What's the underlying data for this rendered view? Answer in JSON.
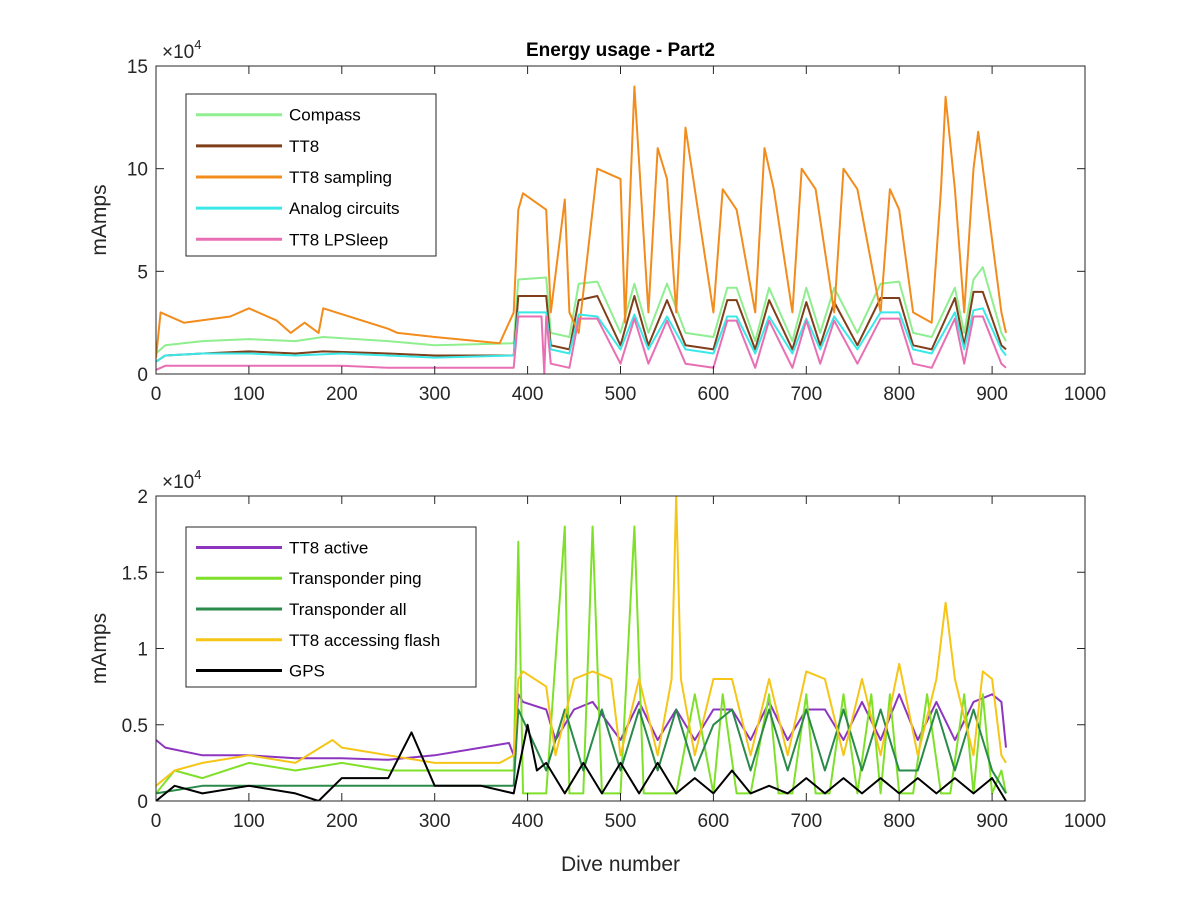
{
  "chart_data": [
    {
      "type": "line",
      "title": "Energy usage - Part2",
      "xlabel": "",
      "ylabel": "mAmps",
      "xlim": [
        0,
        1000
      ],
      "ylim": [
        0,
        150000
      ],
      "y_multiplier": "×10",
      "y_exponent": "4",
      "xticks": [
        0,
        100,
        200,
        300,
        400,
        500,
        600,
        700,
        800,
        900,
        1000
      ],
      "xtick_labels": [
        "0",
        "100",
        "200",
        "300",
        "400",
        "500",
        "600",
        "700",
        "800",
        "900",
        "1000"
      ],
      "yticks": [
        0,
        50000,
        100000,
        150000
      ],
      "ytick_labels": [
        "0",
        "5",
        "10",
        "15"
      ],
      "grid": false,
      "legend_position": "top-left",
      "series": [
        {
          "name": "Compass",
          "color": "#8fee8f",
          "x": [
            0,
            10,
            50,
            100,
            150,
            180,
            250,
            300,
            385,
            390,
            420,
            425,
            445,
            455,
            475,
            500,
            515,
            530,
            550,
            570,
            600,
            615,
            625,
            645,
            660,
            685,
            700,
            715,
            730,
            755,
            780,
            800,
            815,
            835,
            860,
            870,
            880,
            890,
            910,
            915
          ],
          "y": [
            10000,
            14000,
            16000,
            17000,
            16000,
            18000,
            16000,
            14000,
            15000,
            46000,
            47000,
            20000,
            18000,
            44000,
            45000,
            20000,
            44000,
            20000,
            44000,
            20000,
            18000,
            42000,
            42000,
            16000,
            42000,
            16000,
            42000,
            20000,
            42000,
            20000,
            44000,
            45000,
            20000,
            18000,
            42000,
            20000,
            46000,
            52000,
            20000,
            16000
          ]
        },
        {
          "name": "TT8",
          "color": "#7f3f1a",
          "x": [
            0,
            10,
            50,
            100,
            150,
            180,
            250,
            300,
            385,
            390,
            420,
            425,
            445,
            455,
            475,
            500,
            515,
            530,
            550,
            570,
            600,
            615,
            625,
            645,
            660,
            685,
            700,
            715,
            730,
            755,
            780,
            800,
            815,
            835,
            860,
            870,
            880,
            890,
            910,
            915
          ],
          "y": [
            6000,
            9000,
            10000,
            11000,
            10000,
            11000,
            10000,
            9000,
            9000,
            38000,
            38000,
            14000,
            12000,
            36000,
            38000,
            14000,
            38000,
            14000,
            36000,
            14000,
            12000,
            36000,
            36000,
            12000,
            36000,
            12000,
            35000,
            14000,
            35000,
            14000,
            37000,
            37000,
            14000,
            12000,
            37000,
            14000,
            40000,
            40000,
            14000,
            12000
          ]
        },
        {
          "name": "TT8 sampling",
          "color": "#f28c1c",
          "x": [
            0,
            5,
            30,
            80,
            100,
            130,
            145,
            160,
            175,
            180,
            250,
            260,
            300,
            370,
            385,
            390,
            395,
            420,
            425,
            440,
            445,
            455,
            475,
            500,
            505,
            515,
            530,
            540,
            550,
            560,
            570,
            600,
            610,
            625,
            645,
            655,
            665,
            685,
            695,
            710,
            730,
            740,
            755,
            780,
            790,
            800,
            815,
            835,
            845,
            850,
            860,
            870,
            880,
            885,
            910,
            915
          ],
          "y": [
            8000,
            30000,
            25000,
            28000,
            32000,
            26000,
            20000,
            25000,
            20000,
            32000,
            22000,
            20000,
            18000,
            15000,
            30000,
            80000,
            88000,
            80000,
            30000,
            85000,
            30000,
            20000,
            100000,
            95000,
            25000,
            140000,
            30000,
            110000,
            95000,
            30000,
            120000,
            30000,
            90000,
            80000,
            30000,
            110000,
            90000,
            30000,
            100000,
            90000,
            30000,
            100000,
            90000,
            30000,
            90000,
            80000,
            30000,
            25000,
            90000,
            135000,
            90000,
            30000,
            100000,
            118000,
            30000,
            20000
          ]
        },
        {
          "name": "Analog circuits",
          "color": "#3be8e8",
          "x": [
            0,
            10,
            50,
            100,
            150,
            200,
            250,
            300,
            385,
            390,
            420,
            425,
            445,
            455,
            475,
            500,
            515,
            530,
            550,
            570,
            600,
            615,
            625,
            645,
            660,
            685,
            700,
            715,
            730,
            755,
            780,
            800,
            815,
            835,
            860,
            870,
            880,
            890,
            910,
            915
          ],
          "y": [
            6000,
            9000,
            10000,
            10000,
            9000,
            10000,
            9000,
            8000,
            9000,
            30000,
            30000,
            12000,
            10000,
            29000,
            28000,
            12000,
            29000,
            12000,
            28000,
            12000,
            10000,
            28000,
            28000,
            10000,
            28000,
            10000,
            27000,
            12000,
            28000,
            12000,
            30000,
            30000,
            12000,
            10000,
            30000,
            12000,
            31000,
            32000,
            12000,
            9000
          ]
        },
        {
          "name": "TT8 LPSleep",
          "color": "#e86fb4",
          "x": [
            0,
            10,
            50,
            100,
            150,
            200,
            250,
            300,
            385,
            390,
            415,
            418,
            420,
            425,
            445,
            455,
            475,
            500,
            515,
            530,
            550,
            570,
            600,
            615,
            625,
            645,
            660,
            685,
            700,
            715,
            730,
            755,
            780,
            800,
            815,
            835,
            860,
            870,
            880,
            890,
            910,
            915
          ],
          "y": [
            2000,
            4000,
            4000,
            4000,
            4000,
            4000,
            3000,
            3000,
            3000,
            28000,
            28000,
            0,
            28000,
            5000,
            3000,
            27000,
            27000,
            5000,
            27000,
            5000,
            26000,
            5000,
            3000,
            26000,
            26000,
            3000,
            26000,
            3000,
            26000,
            5000,
            26000,
            5000,
            27000,
            27000,
            5000,
            3000,
            27000,
            5000,
            28000,
            28000,
            5000,
            3000
          ]
        }
      ]
    },
    {
      "type": "line",
      "title": "",
      "xlabel": "Dive number",
      "ylabel": "mAmps",
      "xlim": [
        0,
        1000
      ],
      "ylim": [
        0,
        20000
      ],
      "y_multiplier": "×10",
      "y_exponent": "4",
      "xticks": [
        0,
        100,
        200,
        300,
        400,
        500,
        600,
        700,
        800,
        900,
        1000
      ],
      "xtick_labels": [
        "0",
        "100",
        "200",
        "300",
        "400",
        "500",
        "600",
        "700",
        "800",
        "900",
        "1000"
      ],
      "yticks": [
        0,
        5000,
        10000,
        15000,
        20000
      ],
      "ytick_labels": [
        "0",
        "0.5",
        "1",
        "1.5",
        "2"
      ],
      "grid": false,
      "legend_position": "top-left",
      "series": [
        {
          "name": "TT8 active",
          "color": "#8e35c0",
          "x": [
            0,
            10,
            50,
            100,
            150,
            200,
            250,
            300,
            350,
            380,
            385,
            390,
            395,
            420,
            430,
            450,
            470,
            500,
            520,
            540,
            560,
            580,
            600,
            620,
            640,
            660,
            680,
            700,
            720,
            740,
            760,
            780,
            800,
            820,
            840,
            860,
            880,
            900,
            910,
            915
          ],
          "y": [
            4000,
            3500,
            3000,
            3000,
            2800,
            2800,
            2700,
            3000,
            3500,
            3800,
            3000,
            7000,
            6500,
            6000,
            4000,
            6000,
            6500,
            4000,
            6500,
            4000,
            6000,
            4000,
            6000,
            6000,
            4000,
            6500,
            4000,
            6000,
            6000,
            4000,
            6500,
            4000,
            7000,
            4000,
            6500,
            4000,
            6500,
            7000,
            6500,
            3500
          ]
        },
        {
          "name": "Transponder ping",
          "color": "#7fe02a",
          "x": [
            0,
            20,
            50,
            100,
            150,
            200,
            250,
            300,
            385,
            390,
            395,
            400,
            420,
            440,
            445,
            460,
            470,
            480,
            500,
            515,
            525,
            550,
            560,
            580,
            600,
            610,
            625,
            640,
            660,
            670,
            685,
            700,
            710,
            725,
            740,
            755,
            770,
            780,
            790,
            800,
            815,
            830,
            845,
            855,
            870,
            880,
            890,
            900,
            910,
            915
          ],
          "y": [
            500,
            2000,
            1500,
            2500,
            2000,
            2500,
            2000,
            2000,
            2000,
            17000,
            500,
            500,
            500,
            18000,
            500,
            500,
            18000,
            500,
            500,
            18000,
            500,
            500,
            500,
            7000,
            500,
            7000,
            500,
            500,
            7000,
            500,
            500,
            7000,
            500,
            500,
            7000,
            500,
            7000,
            500,
            7000,
            500,
            500,
            7000,
            500,
            500,
            7000,
            500,
            7000,
            500,
            2000,
            500
          ]
        },
        {
          "name": "Transponder all",
          "color": "#2a8a4a",
          "x": [
            0,
            50,
            100,
            200,
            300,
            385,
            390,
            420,
            440,
            460,
            480,
            500,
            520,
            540,
            560,
            580,
            600,
            620,
            640,
            660,
            680,
            700,
            720,
            740,
            760,
            780,
            800,
            820,
            840,
            860,
            880,
            900,
            915
          ],
          "y": [
            500,
            1000,
            1000,
            1000,
            1000,
            1000,
            6000,
            2000,
            6000,
            2000,
            6000,
            2000,
            6000,
            2000,
            6000,
            2000,
            5000,
            6000,
            2000,
            6000,
            2000,
            6000,
            2000,
            6000,
            2000,
            6000,
            2000,
            2000,
            6000,
            2000,
            6000,
            2000,
            500
          ]
        },
        {
          "name": "TT8 accessing flash",
          "color": "#f5c518",
          "x": [
            0,
            20,
            50,
            100,
            150,
            190,
            200,
            250,
            300,
            370,
            385,
            390,
            395,
            420,
            430,
            450,
            470,
            490,
            500,
            520,
            540,
            555,
            560,
            565,
            580,
            600,
            620,
            640,
            660,
            680,
            700,
            720,
            740,
            760,
            780,
            800,
            820,
            840,
            850,
            860,
            880,
            890,
            900,
            910,
            915
          ],
          "y": [
            1000,
            2000,
            2500,
            3000,
            2500,
            4000,
            3500,
            3000,
            2500,
            2500,
            3000,
            8000,
            8500,
            7500,
            3000,
            8000,
            8500,
            8000,
            3000,
            8000,
            3000,
            8000,
            20000,
            8000,
            3000,
            8000,
            8000,
            3000,
            8000,
            3000,
            8500,
            8000,
            3000,
            8000,
            3000,
            9000,
            3000,
            8000,
            13000,
            8000,
            3000,
            8500,
            8000,
            3000,
            2500
          ]
        },
        {
          "name": "GPS",
          "color": "#000000",
          "x": [
            0,
            20,
            50,
            100,
            150,
            175,
            200,
            250,
            275,
            300,
            350,
            385,
            390,
            400,
            410,
            420,
            440,
            460,
            480,
            500,
            520,
            540,
            560,
            580,
            600,
            620,
            640,
            660,
            680,
            700,
            720,
            740,
            760,
            780,
            800,
            820,
            840,
            860,
            880,
            900,
            910,
            915
          ],
          "y": [
            0,
            1000,
            500,
            1000,
            500,
            0,
            1500,
            1500,
            4500,
            1000,
            1000,
            500,
            2000,
            5000,
            2000,
            2500,
            500,
            2500,
            500,
            2500,
            500,
            2500,
            500,
            1500,
            500,
            2000,
            500,
            1000,
            500,
            1500,
            500,
            1500,
            500,
            1500,
            500,
            1500,
            500,
            1500,
            500,
            1500,
            500,
            0
          ]
        }
      ]
    }
  ]
}
